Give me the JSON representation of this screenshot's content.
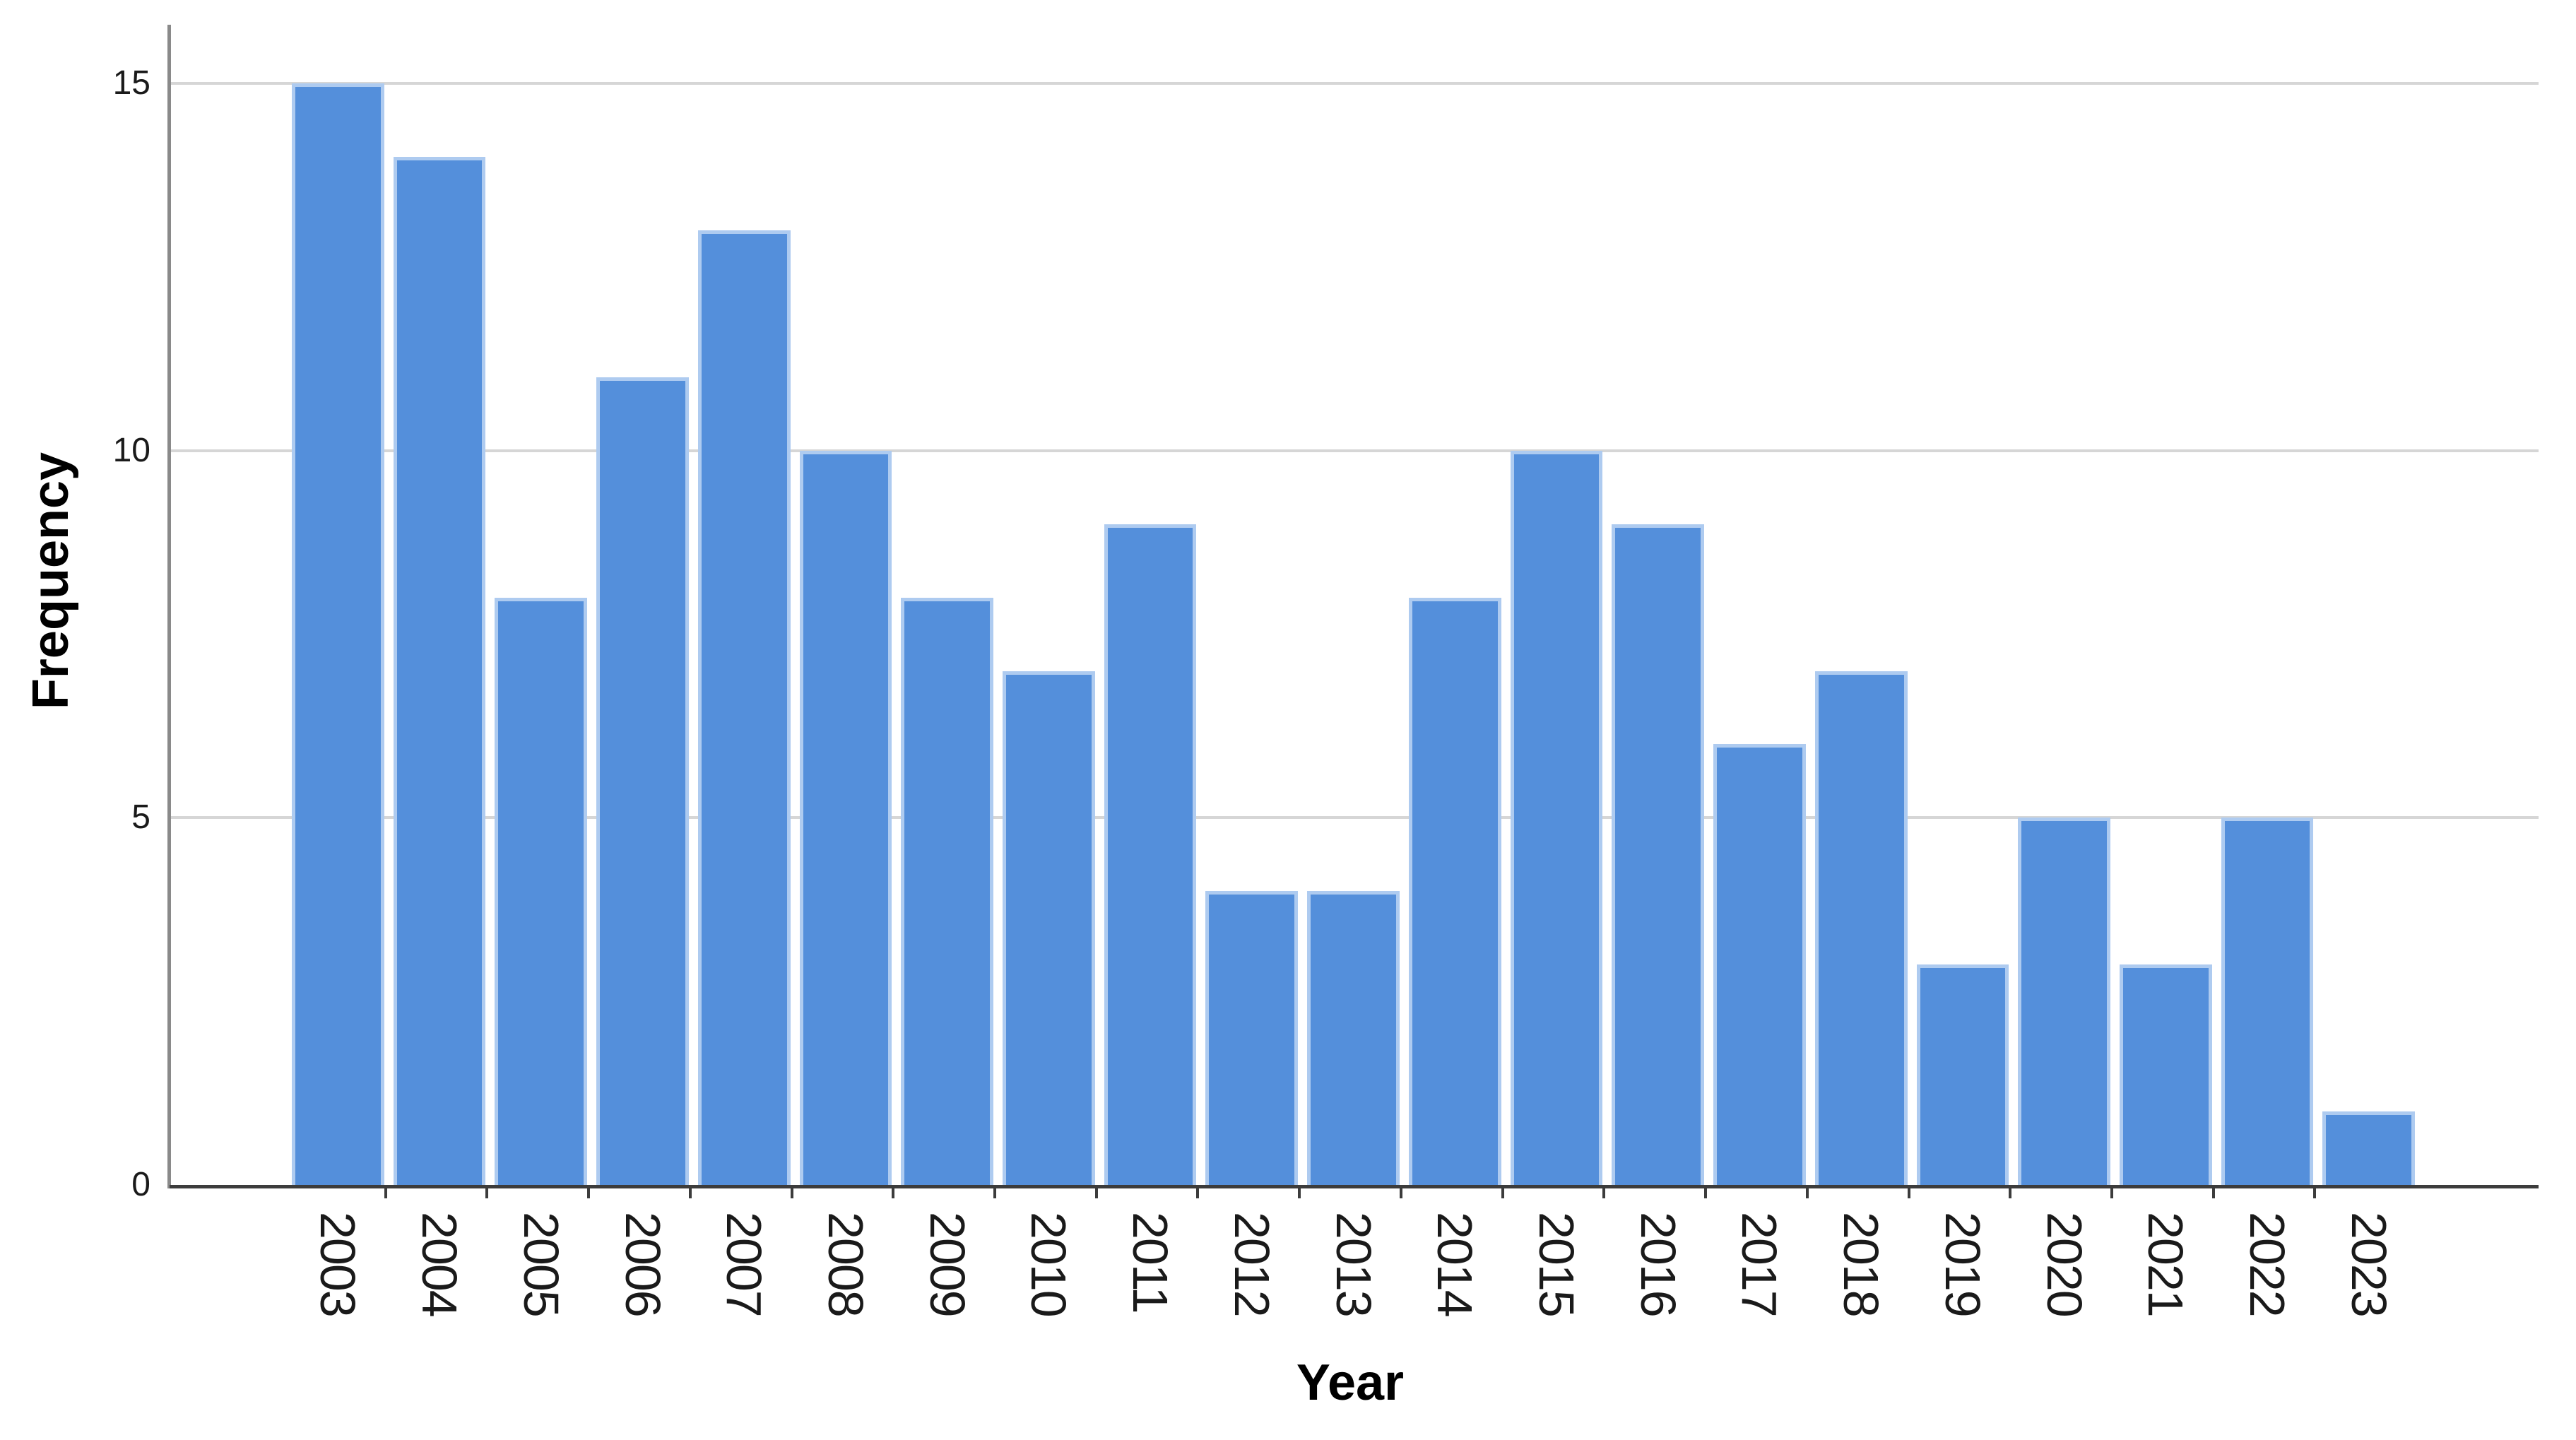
{
  "chart_data": {
    "type": "bar",
    "title": "",
    "xlabel": "Year",
    "ylabel": "Frequency",
    "categories": [
      "2003",
      "2004",
      "2005",
      "2006",
      "2007",
      "2008",
      "2009",
      "2010",
      "2011",
      "2012",
      "2013",
      "2014",
      "2015",
      "2016",
      "2017",
      "2018",
      "2019",
      "2020",
      "2021",
      "2022",
      "2023"
    ],
    "values": [
      15,
      14,
      8,
      11,
      13,
      10,
      8,
      7,
      9,
      4,
      4,
      8,
      10,
      9,
      6,
      7,
      3,
      5,
      3,
      5,
      1
    ],
    "yticks": [
      "0",
      "5",
      "10",
      "15"
    ],
    "ylim": [
      0,
      15.8
    ],
    "grid": "horizontal-only",
    "legend": "none",
    "x_tick_rotation_degrees": 90,
    "colors": {
      "bar_fill": "#548fdb",
      "bar_border": "#aecbf0",
      "gridline": "#d6d6d6",
      "y_axis_line": "#8a8a8a",
      "baseline": "#3c3c3c",
      "text": "#1a1a1a"
    }
  }
}
